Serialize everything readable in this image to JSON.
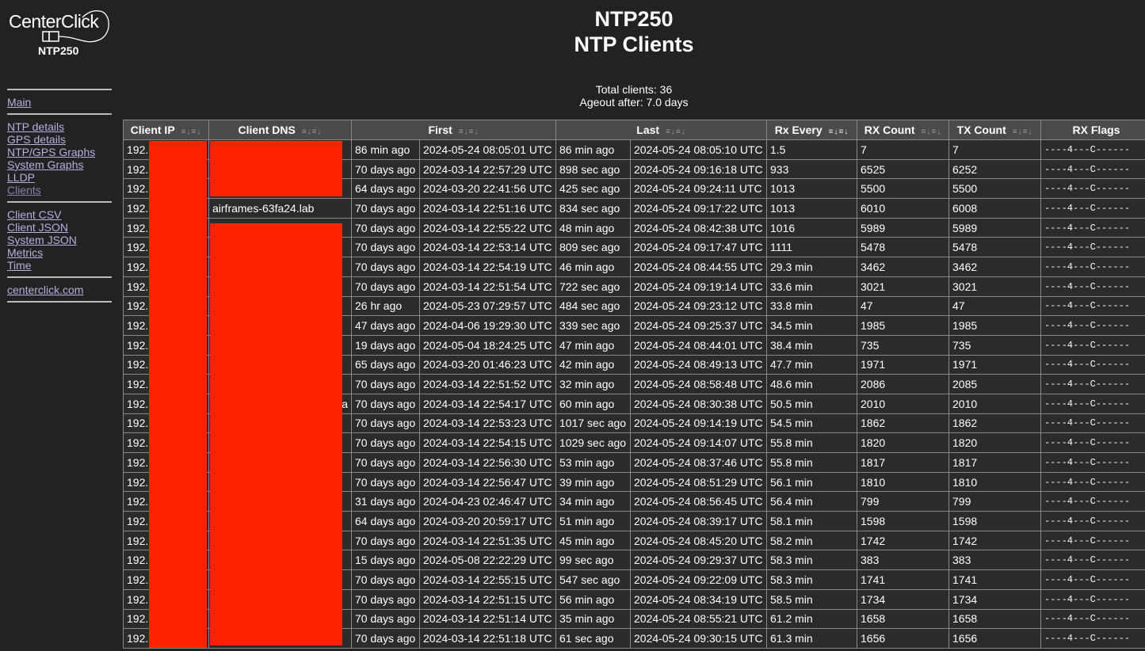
{
  "logo": {
    "brand": "CenterClick",
    "model": "NTP250"
  },
  "nav": {
    "groups": [
      [
        {
          "label": "Main"
        }
      ],
      [
        {
          "label": "NTP details"
        },
        {
          "label": "GPS details"
        },
        {
          "label": "NTP/GPS Graphs"
        },
        {
          "label": "System Graphs"
        },
        {
          "label": "LLDP"
        },
        {
          "label": "Clients",
          "current": true
        }
      ],
      [
        {
          "label": "Client CSV"
        },
        {
          "label": "Client JSON"
        },
        {
          "label": "System JSON"
        },
        {
          "label": "Metrics"
        },
        {
          "label": "Time"
        }
      ],
      [
        {
          "label": "centerclick.com"
        }
      ]
    ]
  },
  "header": {
    "device": "NTP250",
    "page": "NTP Clients",
    "total_clients": "Total clients: 36",
    "ageout": "Ageout after: 7.0 days"
  },
  "table": {
    "columns": [
      {
        "label": "Client IP",
        "span": 1,
        "sortable": true
      },
      {
        "label": "Client DNS",
        "span": 1,
        "sortable": true
      },
      {
        "label": "First",
        "span": 2,
        "sortable": true
      },
      {
        "label": "Last",
        "span": 2,
        "sortable": true
      },
      {
        "label": "Rx Every",
        "span": 1,
        "sortable": true,
        "active_sort": true
      },
      {
        "label": "RX Count",
        "span": 1,
        "sortable": true
      },
      {
        "label": "TX Count",
        "span": 1,
        "sortable": true
      },
      {
        "label": "RX Flags",
        "span": 1,
        "sortable": false
      }
    ],
    "rows": [
      [
        "192.",
        "",
        "86 min ago",
        "2024-05-24 08:05:01 UTC",
        "86 min ago",
        "2024-05-24 08:05:10 UTC",
        "1.5",
        "7",
        "7",
        "----4---C------"
      ],
      [
        "192.",
        "",
        "70 days ago",
        "2024-03-14 22:57:29 UTC",
        "898 sec ago",
        "2024-05-24 09:16:18 UTC",
        "933",
        "6525",
        "6252",
        "----4---C------"
      ],
      [
        "192.",
        "",
        "64 days ago",
        "2024-03-20 22:41:56 UTC",
        "425 sec ago",
        "2024-05-24 09:24:11 UTC",
        "1013",
        "5500",
        "5500",
        "----4---C------"
      ],
      [
        "192.",
        "airframes-63fa24.lab",
        "70 days ago",
        "2024-03-14 22:51:16 UTC",
        "834 sec ago",
        "2024-05-24 09:17:22 UTC",
        "1013",
        "6010",
        "6008",
        "----4---C------"
      ],
      [
        "192.",
        "",
        "70 days ago",
        "2024-03-14 22:55:22 UTC",
        "48 min ago",
        "2024-05-24 08:42:38 UTC",
        "1016",
        "5989",
        "5989",
        "----4---C------"
      ],
      [
        "192.",
        "",
        "70 days ago",
        "2024-03-14 22:53:14 UTC",
        "809 sec ago",
        "2024-05-24 09:17:47 UTC",
        "1111",
        "5478",
        "5478",
        "----4---C------"
      ],
      [
        "192.",
        "",
        "70 days ago",
        "2024-03-14 22:54:19 UTC",
        "46 min ago",
        "2024-05-24 08:44:55 UTC",
        "29.3 min",
        "3462",
        "3462",
        "----4---C------"
      ],
      [
        "192.",
        "",
        "70 days ago",
        "2024-03-14 22:51:54 UTC",
        "722 sec ago",
        "2024-05-24 09:19:14 UTC",
        "33.6 min",
        "3021",
        "3021",
        "----4---C------"
      ],
      [
        "192.",
        "",
        "26 hr ago",
        "2024-05-23 07:29:57 UTC",
        "484 sec ago",
        "2024-05-24 09:23:12 UTC",
        "33.8 min",
        "47",
        "47",
        "----4---C------"
      ],
      [
        "192.",
        "",
        "47 days ago",
        "2024-04-06 19:29:30 UTC",
        "339 sec ago",
        "2024-05-24 09:25:37 UTC",
        "34.5 min",
        "1985",
        "1985",
        "----4---C------"
      ],
      [
        "192.",
        "",
        "19 days ago",
        "2024-05-04 18:24:25 UTC",
        "47 min ago",
        "2024-05-24 08:44:01 UTC",
        "38.4 min",
        "735",
        "735",
        "----4---C------"
      ],
      [
        "192.",
        "",
        "65 days ago",
        "2024-03-20 01:46:23 UTC",
        "42 min ago",
        "2024-05-24 08:49:13 UTC",
        "47.7 min",
        "1971",
        "1971",
        "----4---C------"
      ],
      [
        "192.",
        "",
        "70 days ago",
        "2024-03-14 22:51:52 UTC",
        "32 min ago",
        "2024-05-24 08:58:48 UTC",
        "48.6 min",
        "2086",
        "2085",
        "----4---C------"
      ],
      [
        "192.",
        "a",
        "70 days ago",
        "2024-03-14 22:54:17 UTC",
        "60 min ago",
        "2024-05-24 08:30:38 UTC",
        "50.5 min",
        "2010",
        "2010",
        "----4---C------"
      ],
      [
        "192.",
        "",
        "70 days ago",
        "2024-03-14 22:53:23 UTC",
        "1017 sec ago",
        "2024-05-24 09:14:19 UTC",
        "54.5 min",
        "1862",
        "1862",
        "----4---C------"
      ],
      [
        "192.",
        "",
        "70 days ago",
        "2024-03-14 22:54:15 UTC",
        "1029 sec ago",
        "2024-05-24 09:14:07 UTC",
        "55.8 min",
        "1820",
        "1820",
        "----4---C------"
      ],
      [
        "192.",
        "",
        "70 days ago",
        "2024-03-14 22:56:30 UTC",
        "53 min ago",
        "2024-05-24 08:37:46 UTC",
        "55.8 min",
        "1817",
        "1817",
        "----4---C------"
      ],
      [
        "192.",
        "",
        "70 days ago",
        "2024-03-14 22:56:47 UTC",
        "39 min ago",
        "2024-05-24 08:51:29 UTC",
        "56.1 min",
        "1810",
        "1810",
        "----4---C------"
      ],
      [
        "192.",
        "",
        "31 days ago",
        "2024-04-23 02:46:47 UTC",
        "34 min ago",
        "2024-05-24 08:56:45 UTC",
        "56.4 min",
        "799",
        "799",
        "----4---C------"
      ],
      [
        "192.",
        "",
        "64 days ago",
        "2024-03-20 20:59:17 UTC",
        "51 min ago",
        "2024-05-24 08:39:17 UTC",
        "58.1 min",
        "1598",
        "1598",
        "----4---C------"
      ],
      [
        "192.",
        "",
        "70 days ago",
        "2024-03-14 22:51:35 UTC",
        "45 min ago",
        "2024-05-24 08:45:20 UTC",
        "58.2 min",
        "1742",
        "1742",
        "----4---C------"
      ],
      [
        "192.",
        "",
        "15 days ago",
        "2024-05-08 22:22:29 UTC",
        "99 sec ago",
        "2024-05-24 09:29:37 UTC",
        "58.3 min",
        "383",
        "383",
        "----4---C------"
      ],
      [
        "192.",
        "",
        "70 days ago",
        "2024-03-14 22:55:15 UTC",
        "547 sec ago",
        "2024-05-24 09:22:09 UTC",
        "58.3 min",
        "1741",
        "1741",
        "----4---C------"
      ],
      [
        "192.",
        "",
        "70 days ago",
        "2024-03-14 22:51:15 UTC",
        "56 min ago",
        "2024-05-24 08:34:19 UTC",
        "58.5 min",
        "1734",
        "1734",
        "----4---C------"
      ],
      [
        "192.",
        "",
        "70 days ago",
        "2024-03-14 22:51:14 UTC",
        "35 min ago",
        "2024-05-24 08:55:21 UTC",
        "61.2 min",
        "1658",
        "1658",
        "----4---C------"
      ],
      [
        "192.",
        "",
        "70 days ago",
        "2024-03-14 22:51:18 UTC",
        "61 sec ago",
        "2024-05-24 09:30:15 UTC",
        "61.3 min",
        "1656",
        "1656",
        "----4---C------"
      ]
    ]
  },
  "colors": {
    "background": "#222222",
    "link": "#b8aee0",
    "redaction": "#ff2200",
    "header_bg": "#4a4a4a"
  }
}
